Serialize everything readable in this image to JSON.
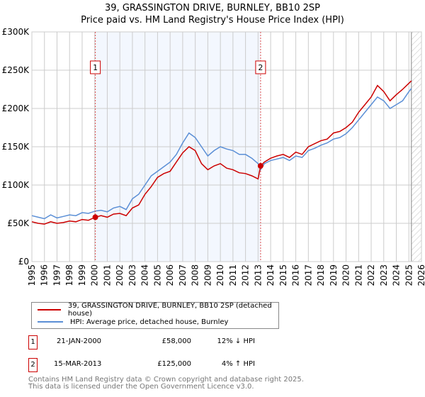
{
  "title_line1": "39, GRASSINGTON DRIVE, BURNLEY, BB10 2SP",
  "title_line2": "Price paid vs. HM Land Registry's House Price Index (HPI)",
  "chart_data": {
    "type": "line",
    "title": "39, GRASSINGTON DRIVE, BURNLEY, BB10 2SP — Price paid vs. HM Land Registry's House Price Index (HPI)",
    "xlim": [
      1995,
      2026
    ],
    "ylim": [
      0,
      300000
    ],
    "x_ticks": [
      "1995",
      "1996",
      "1997",
      "1998",
      "1999",
      "2000",
      "2001",
      "2002",
      "2003",
      "2004",
      "2005",
      "2006",
      "2007",
      "2008",
      "2009",
      "2010",
      "2011",
      "2012",
      "2013",
      "2014",
      "2015",
      "2016",
      "2017",
      "2018",
      "2019",
      "2020",
      "2021",
      "2022",
      "2023",
      "2024",
      "2025",
      "2026"
    ],
    "y_ticks": [
      {
        "v": 0,
        "label": "£0"
      },
      {
        "v": 50000,
        "label": "£50K"
      },
      {
        "v": 100000,
        "label": "£100K"
      },
      {
        "v": 150000,
        "label": "£150K"
      },
      {
        "v": 200000,
        "label": "£200K"
      },
      {
        "v": 250000,
        "label": "£250K"
      },
      {
        "v": 300000,
        "label": "£300K"
      }
    ],
    "grid": true,
    "shaded_range": [
      2000.05,
      2013.2
    ],
    "hatched_from": 2025.2,
    "series": [
      {
        "name": "39, GRASSINGTON DRIVE, BURNLEY, BB10 2SP (detached house)",
        "color": "#cc0000",
        "x": [
          1995,
          1995.5,
          1996,
          1996.5,
          1997,
          1997.5,
          1998,
          1998.5,
          1999,
          1999.5,
          2000.05,
          2000.5,
          2001,
          2001.5,
          2002,
          2002.5,
          2003,
          2003.5,
          2004,
          2004.5,
          2005,
          2005.5,
          2006,
          2006.5,
          2007,
          2007.5,
          2008,
          2008.5,
          2009,
          2009.5,
          2010,
          2010.5,
          2011,
          2011.5,
          2012,
          2012.5,
          2013,
          2013.2,
          2013.5,
          2014,
          2014.5,
          2015,
          2015.5,
          2016,
          2016.5,
          2017,
          2017.5,
          2018,
          2018.5,
          2019,
          2019.5,
          2020,
          2020.5,
          2021,
          2021.5,
          2022,
          2022.5,
          2023,
          2023.5,
          2024,
          2024.5,
          2025,
          2025.2
        ],
        "values": [
          52000,
          50000,
          49000,
          52000,
          50000,
          51000,
          53000,
          52000,
          55000,
          54000,
          58000,
          60000,
          58000,
          62000,
          63000,
          60000,
          70000,
          74000,
          88000,
          98000,
          110000,
          115000,
          118000,
          130000,
          142000,
          150000,
          145000,
          128000,
          120000,
          125000,
          128000,
          122000,
          120000,
          116000,
          115000,
          112000,
          108000,
          125000,
          130000,
          135000,
          138000,
          140000,
          136000,
          143000,
          140000,
          150000,
          154000,
          158000,
          160000,
          168000,
          170000,
          175000,
          182000,
          195000,
          205000,
          215000,
          230000,
          222000,
          210000,
          218000,
          225000,
          233000,
          236000
        ]
      },
      {
        "name": "HPI: Average price, detached house, Burnley",
        "color": "#5b8fd6",
        "x": [
          1995,
          1995.5,
          1996,
          1996.5,
          1997,
          1997.5,
          1998,
          1998.5,
          1999,
          1999.5,
          2000.05,
          2000.5,
          2001,
          2001.5,
          2002,
          2002.5,
          2003,
          2003.5,
          2004,
          2004.5,
          2005,
          2005.5,
          2006,
          2006.5,
          2007,
          2007.5,
          2008,
          2008.5,
          2009,
          2009.5,
          2010,
          2010.5,
          2011,
          2011.5,
          2012,
          2012.5,
          2013,
          2013.2,
          2013.5,
          2014,
          2014.5,
          2015,
          2015.5,
          2016,
          2016.5,
          2017,
          2017.5,
          2018,
          2018.5,
          2019,
          2019.5,
          2020,
          2020.5,
          2021,
          2021.5,
          2022,
          2022.5,
          2023,
          2023.5,
          2024,
          2024.5,
          2025,
          2025.2
        ],
        "values": [
          60000,
          58000,
          56000,
          61000,
          57000,
          59000,
          61000,
          60000,
          64000,
          63000,
          66000,
          67000,
          65000,
          70000,
          72000,
          68000,
          82000,
          88000,
          100000,
          112000,
          118000,
          124000,
          130000,
          140000,
          155000,
          168000,
          162000,
          150000,
          138000,
          145000,
          150000,
          147000,
          145000,
          140000,
          140000,
          135000,
          128000,
          120000,
          128000,
          132000,
          134000,
          136000,
          132000,
          138000,
          136000,
          145000,
          148000,
          152000,
          155000,
          160000,
          162000,
          167000,
          175000,
          185000,
          195000,
          205000,
          215000,
          210000,
          200000,
          205000,
          210000,
          222000,
          226000
        ]
      }
    ],
    "annotations": [
      {
        "label": "1",
        "x": 2000.05,
        "y": 58000
      },
      {
        "label": "2",
        "x": 2013.2,
        "y": 125000
      }
    ]
  },
  "legend": [
    {
      "label": "39, GRASSINGTON DRIVE, BURNLEY, BB10 2SP (detached house)",
      "color": "#cc0000"
    },
    {
      "label": "HPI: Average price, detached house, Burnley",
      "color": "#5b8fd6"
    }
  ],
  "transactions": [
    {
      "num": "1",
      "date": "21-JAN-2000",
      "price": "£58,000",
      "hpi": "12% ↓ HPI"
    },
    {
      "num": "2",
      "date": "15-MAR-2013",
      "price": "£125,000",
      "hpi": "4% ↑ HPI"
    }
  ],
  "footer_line1": "Contains HM Land Registry data © Crown copyright and database right 2025.",
  "footer_line2": "This data is licensed under the Open Government Licence v3.0."
}
